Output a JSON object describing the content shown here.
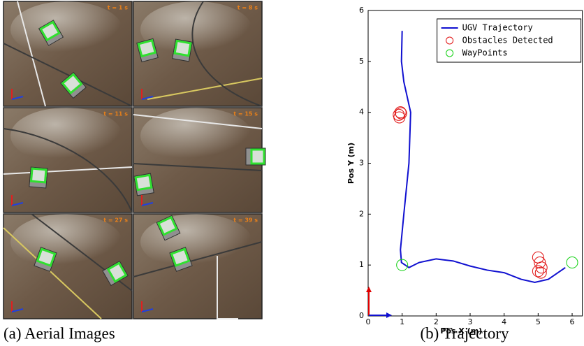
{
  "aerial_images": {
    "timestamps": [
      "t = 1 s",
      "t = 8 s",
      "t = 11 s",
      "t = 15 s",
      "t = 27 s",
      "t = 39 s"
    ]
  },
  "captions": [
    "(a) Aerial Images",
    "(b) Trajectory"
  ],
  "chart_data": {
    "type": "line",
    "xlabel": "Pos X (m)",
    "ylabel": "Pos Y (m)",
    "xlim": [
      0,
      6.3
    ],
    "ylim": [
      0,
      6
    ],
    "xticks": [
      0,
      1,
      2,
      3,
      4,
      5,
      6
    ],
    "yticks": [
      0,
      1,
      2,
      3,
      4,
      5,
      6
    ],
    "legend": "upper right",
    "series": [
      {
        "name": "UGV Trajectory",
        "type": "line",
        "color": "#1010d0",
        "x": [
          1.0,
          0.98,
          1.05,
          1.25,
          1.2,
          1.05,
          0.95,
          0.98,
          1.2,
          1.5,
          2.0,
          2.5,
          3.0,
          3.5,
          4.0,
          4.5,
          4.9,
          5.3,
          5.8
        ],
        "values": [
          5.6,
          5.0,
          4.6,
          4.0,
          3.0,
          2.0,
          1.3,
          1.05,
          0.95,
          1.05,
          1.12,
          1.08,
          0.98,
          0.9,
          0.85,
          0.72,
          0.66,
          0.72,
          0.95
        ]
      },
      {
        "name": "Obstacles Detected",
        "type": "scatter",
        "color": "#e01010",
        "x": [
          0.9,
          0.95,
          0.92,
          0.97,
          5.0,
          5.05,
          5.1,
          5.0,
          5.08
        ],
        "values": [
          3.95,
          4.0,
          3.9,
          3.98,
          1.15,
          1.05,
          0.95,
          0.88,
          0.85
        ]
      },
      {
        "name": "WayPoints",
        "type": "scatter",
        "color": "#10d010",
        "x": [
          1.0,
          6.0
        ],
        "values": [
          1.0,
          1.05
        ]
      }
    ]
  }
}
